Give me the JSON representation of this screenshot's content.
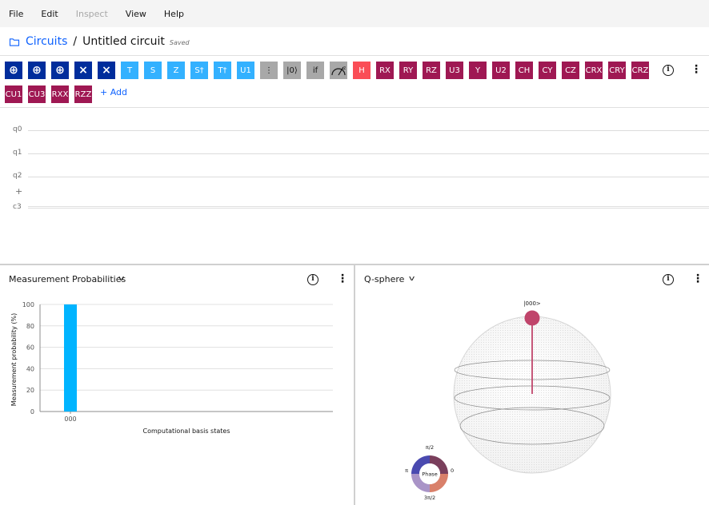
{
  "menu": [
    "File",
    "Edit",
    "Inspect",
    "View",
    "Help"
  ],
  "menu_disabled": [
    "Inspect"
  ],
  "breadcrumb": {
    "root": "Circuits",
    "separator": "/",
    "title": "Untitled circuit",
    "status": "Saved"
  },
  "gates_row1": [
    {
      "label": "⊕",
      "color": "navy",
      "icon": "cnot-target-icon"
    },
    {
      "label": "⊕",
      "color": "navy",
      "icon": "cnot-icon"
    },
    {
      "label": "⊕",
      "color": "navy",
      "icon": "toffoli-icon"
    },
    {
      "label": "×",
      "color": "navy",
      "icon": "swap-icon"
    },
    {
      "label": "×",
      "color": "navy",
      "icon": "controlled-swap-icon"
    },
    {
      "label": "T",
      "color": "cyan"
    },
    {
      "label": "S",
      "color": "cyan"
    },
    {
      "label": "Z",
      "color": "cyan"
    },
    {
      "label": "S†",
      "color": "cyan"
    },
    {
      "label": "T†",
      "color": "cyan"
    },
    {
      "label": "U1",
      "color": "cyan"
    },
    {
      "label": "⋮",
      "color": "gray",
      "icon": "barrier-icon"
    },
    {
      "label": "|0⟩",
      "color": "gray"
    },
    {
      "label": "if",
      "color": "gray"
    },
    {
      "label": "",
      "color": "gray",
      "icon": "measure-icon"
    },
    {
      "label": "H",
      "color": "red"
    },
    {
      "label": "RX",
      "color": "mag"
    },
    {
      "label": "RY",
      "color": "mag"
    },
    {
      "label": "RZ",
      "color": "mag"
    },
    {
      "label": "U3",
      "color": "mag"
    },
    {
      "label": "Y",
      "color": "mag"
    },
    {
      "label": "U2",
      "color": "mag"
    },
    {
      "label": "CH",
      "color": "mag"
    },
    {
      "label": "CY",
      "color": "mag"
    },
    {
      "label": "CZ",
      "color": "mag"
    },
    {
      "label": "CRX",
      "color": "mag"
    },
    {
      "label": "CRY",
      "color": "mag"
    },
    {
      "label": "CRZ",
      "color": "mag"
    }
  ],
  "gates_row2": [
    {
      "label": "CU1",
      "color": "mag"
    },
    {
      "label": "CU3",
      "color": "mag"
    },
    {
      "label": "RXX",
      "color": "mag"
    },
    {
      "label": "RZZ",
      "color": "mag"
    }
  ],
  "add_label": "+ Add",
  "qubits": [
    "q0",
    "q1",
    "q2"
  ],
  "add_qubit": "+",
  "classical": "c3",
  "colors": {
    "navy": "#002d9c",
    "cyan": "#33b1ff",
    "gray": "#a8a8a8",
    "magenta": "#9f1853",
    "red": "#fa4d56",
    "link": "#0f62fe"
  },
  "probabilities_panel": {
    "title": "Measurement Probabilities",
    "chart_data": {
      "type": "bar",
      "categories": [
        "000"
      ],
      "values": [
        100
      ],
      "xlabel": "Computational basis states",
      "ylabel": "Measurement probability (%)",
      "ylim": [
        0,
        100
      ],
      "yticks": [
        0,
        20,
        40,
        60,
        80,
        100
      ],
      "grid": true,
      "bar_color": "#00b4ff"
    }
  },
  "qsphere_panel": {
    "title": "Q-sphere",
    "state_label": "|000>",
    "state_color": "#c0456b",
    "phase_legend": {
      "center": "Phase",
      "top": "π/2",
      "left": "π",
      "right": "0",
      "bottom": "3π/2"
    }
  }
}
